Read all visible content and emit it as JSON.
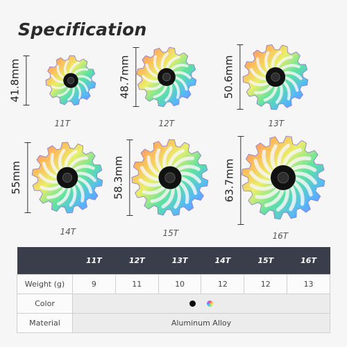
{
  "title": "Specification",
  "pulleys": [
    {
      "teeth": "11T",
      "diameter": "41.8mm",
      "tooth_count": 11
    },
    {
      "teeth": "12T",
      "diameter": "48.7mm",
      "tooth_count": 12
    },
    {
      "teeth": "13T",
      "diameter": "50.6mm",
      "tooth_count": 13
    },
    {
      "teeth": "14T",
      "diameter": "55mm",
      "tooth_count": 14
    },
    {
      "teeth": "15T",
      "diameter": "58.3mm",
      "tooth_count": 15
    },
    {
      "teeth": "16T",
      "diameter": "63.7mm",
      "tooth_count": 16
    }
  ],
  "table": {
    "headers": [
      "",
      "11T",
      "12T",
      "13T",
      "14T",
      "15T",
      "16T"
    ],
    "weight_label": "Weight (g)",
    "weights": [
      "9",
      "11",
      "10",
      "12",
      "12",
      "13"
    ],
    "color_label": "Color",
    "colors": [
      "black",
      "rainbow"
    ],
    "material_label": "Material",
    "material": "Aluminum Alloy"
  },
  "colors": {
    "header_bg": "#3a3d4a",
    "hub": "#111111"
  }
}
